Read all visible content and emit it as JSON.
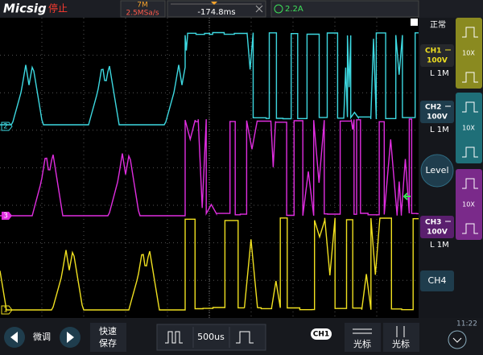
{
  "header": {
    "brand": "Micsig",
    "status": "停止",
    "memory_depth": "7M",
    "sample_rate": "2.5MSa/s",
    "trigger_delay": "-174.8ms",
    "trigger_level": "2.2A"
  },
  "right_panel": {
    "mode": "正常",
    "channels": [
      {
        "name": "CH1",
        "scale": "100V",
        "impedance": "L 1M",
        "probe": "10X"
      },
      {
        "name": "CH2",
        "scale": "100V",
        "impedance": "L 1M",
        "probe": "10X"
      },
      {
        "name": "CH3",
        "scale": "100V",
        "impedance": "L 1M",
        "probe": "10X"
      }
    ],
    "level": "Level",
    "ch4": "CH4"
  },
  "markers": [
    "2",
    "3",
    "1"
  ],
  "bottom": {
    "fine": "微调",
    "save": [
      "快速",
      "保存"
    ],
    "timebase": "500us",
    "cursor_channel": "CH1",
    "cursor_1": "光标",
    "cursor_2": "光标",
    "clock": "11:22"
  }
}
